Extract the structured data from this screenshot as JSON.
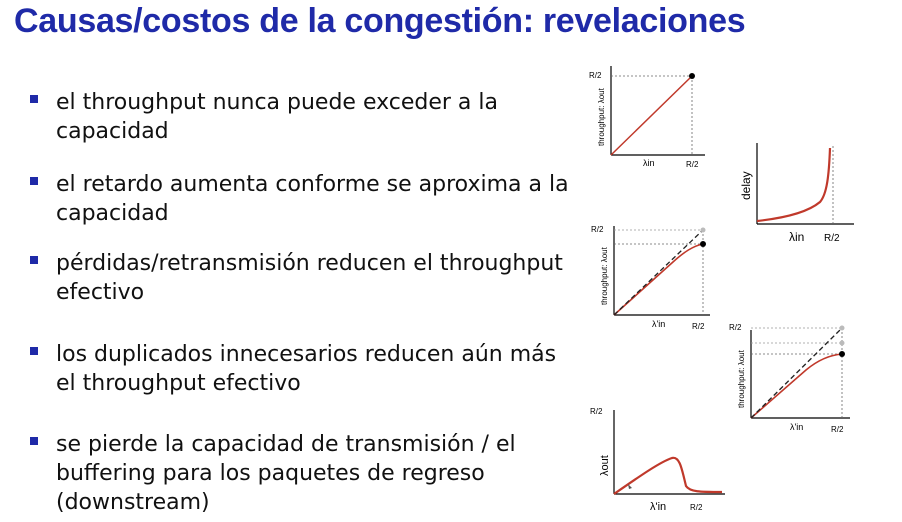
{
  "slide": {
    "title": "Causas/costos de la congestión: revelaciones",
    "bullets": [
      "el throughput nunca puede exceder a la capacidad",
      "el retardo aumenta conforme se aproxima a la capacidad",
      "pérdidas/retransmisión reducen el throughput efectivo",
      "los duplicados innecesarios reducen aún más el throughput efectivo",
      "se pierde la capacidad de transmisión / el buffering para los paquetes de regreso (downstream)"
    ]
  },
  "graphs": {
    "throughput_ylabel": "throughput: λout",
    "delay_ylabel": "delay",
    "lambda_out": "λout",
    "lambda_in": "λin",
    "lambda_in_prime": "λ'in",
    "r2": "R/2"
  },
  "colors": {
    "title": "#1f2aa8",
    "curve": "#c0392b",
    "text": "#111111"
  }
}
